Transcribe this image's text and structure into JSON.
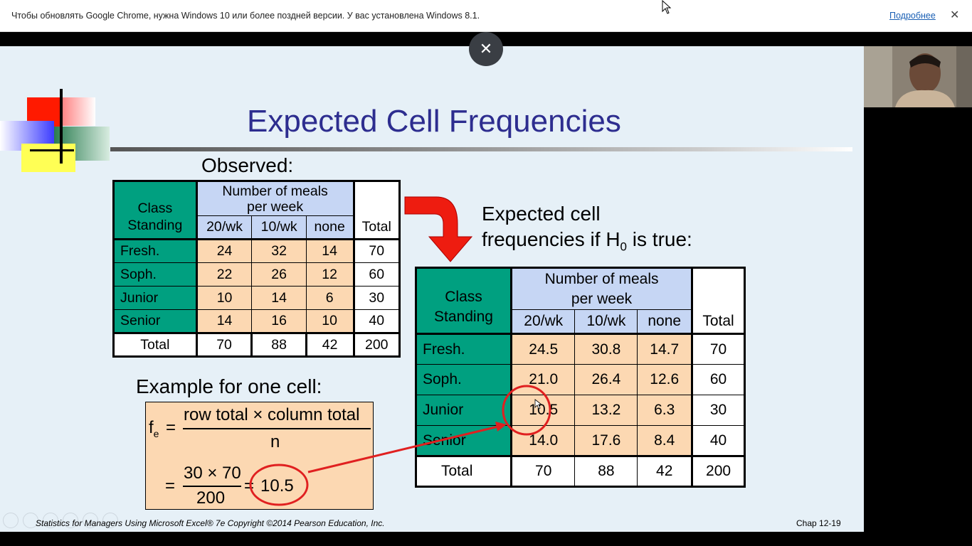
{
  "infobar": {
    "message": "Чтобы обновлять Google Chrome, нужна Windows 10 или более поздней версии. У вас установлена Windows 8.1.",
    "link": "Подробнее",
    "close": "✕"
  },
  "viewer": {
    "close": "✕"
  },
  "slide": {
    "title": "Expected Cell Frequencies",
    "observed_label": "Observed:",
    "expected_label_line1": "Expected cell",
    "expected_label_line2a": "frequencies  if H",
    "expected_label_sub": "0",
    "expected_label_line2b": " is true:",
    "example_label": "Example for one cell:",
    "footer_left": "Statistics for Managers Using Microsoft Excel® 7e Copyright ©2014 Pearson Education, Inc.",
    "footer_right": "Chap 12-19"
  },
  "observed": {
    "corner": "Class Standing",
    "group": "Number of meals per week",
    "cols": [
      "20/wk",
      "10/wk",
      "none"
    ],
    "total_col": "Total",
    "rows": [
      {
        "label": "Fresh.",
        "values": [
          "24",
          "32",
          "14"
        ],
        "total": "70"
      },
      {
        "label": "Soph.",
        "values": [
          "22",
          "26",
          "12"
        ],
        "total": "60"
      },
      {
        "label": "Junior",
        "values": [
          "10",
          "14",
          "6"
        ],
        "total": "30"
      },
      {
        "label": "Senior",
        "values": [
          "14",
          "16",
          "10"
        ],
        "total": "40"
      }
    ],
    "total_row": {
      "label": "Total",
      "values": [
        "70",
        "88",
        "42"
      ],
      "total": "200"
    }
  },
  "expected": {
    "corner": "Class Standing",
    "group": "Number of meals per week",
    "cols": [
      "20/wk",
      "10/wk",
      "none"
    ],
    "total_col": "Total",
    "rows": [
      {
        "label": "Fresh.",
        "values": [
          "24.5",
          "30.8",
          "14.7"
        ],
        "total": "70"
      },
      {
        "label": "Soph.",
        "values": [
          "21.0",
          "26.4",
          "12.6"
        ],
        "total": "60"
      },
      {
        "label": "Junior",
        "values": [
          "10.5",
          "13.2",
          "6.3"
        ],
        "total": "30"
      },
      {
        "label": "Senior",
        "values": [
          "14.0",
          "17.6",
          "8.4"
        ],
        "total": "40"
      }
    ],
    "total_row": {
      "label": "Total",
      "values": [
        "70",
        "88",
        "42"
      ],
      "total": "200"
    }
  },
  "formula": {
    "lhs": "f",
    "lhs_sub": "e",
    "eq": "=",
    "numerator": "row total × column total",
    "denominator": "n",
    "num2": "30 × 70",
    "den2": "200",
    "eq2": "=",
    "result": "10.5"
  },
  "colors": {
    "highlight": "#e02020",
    "teal": "#00a080",
    "header_blue": "#c6d6f4",
    "peach": "#fcd8b2",
    "title": "#2d2d8f"
  }
}
